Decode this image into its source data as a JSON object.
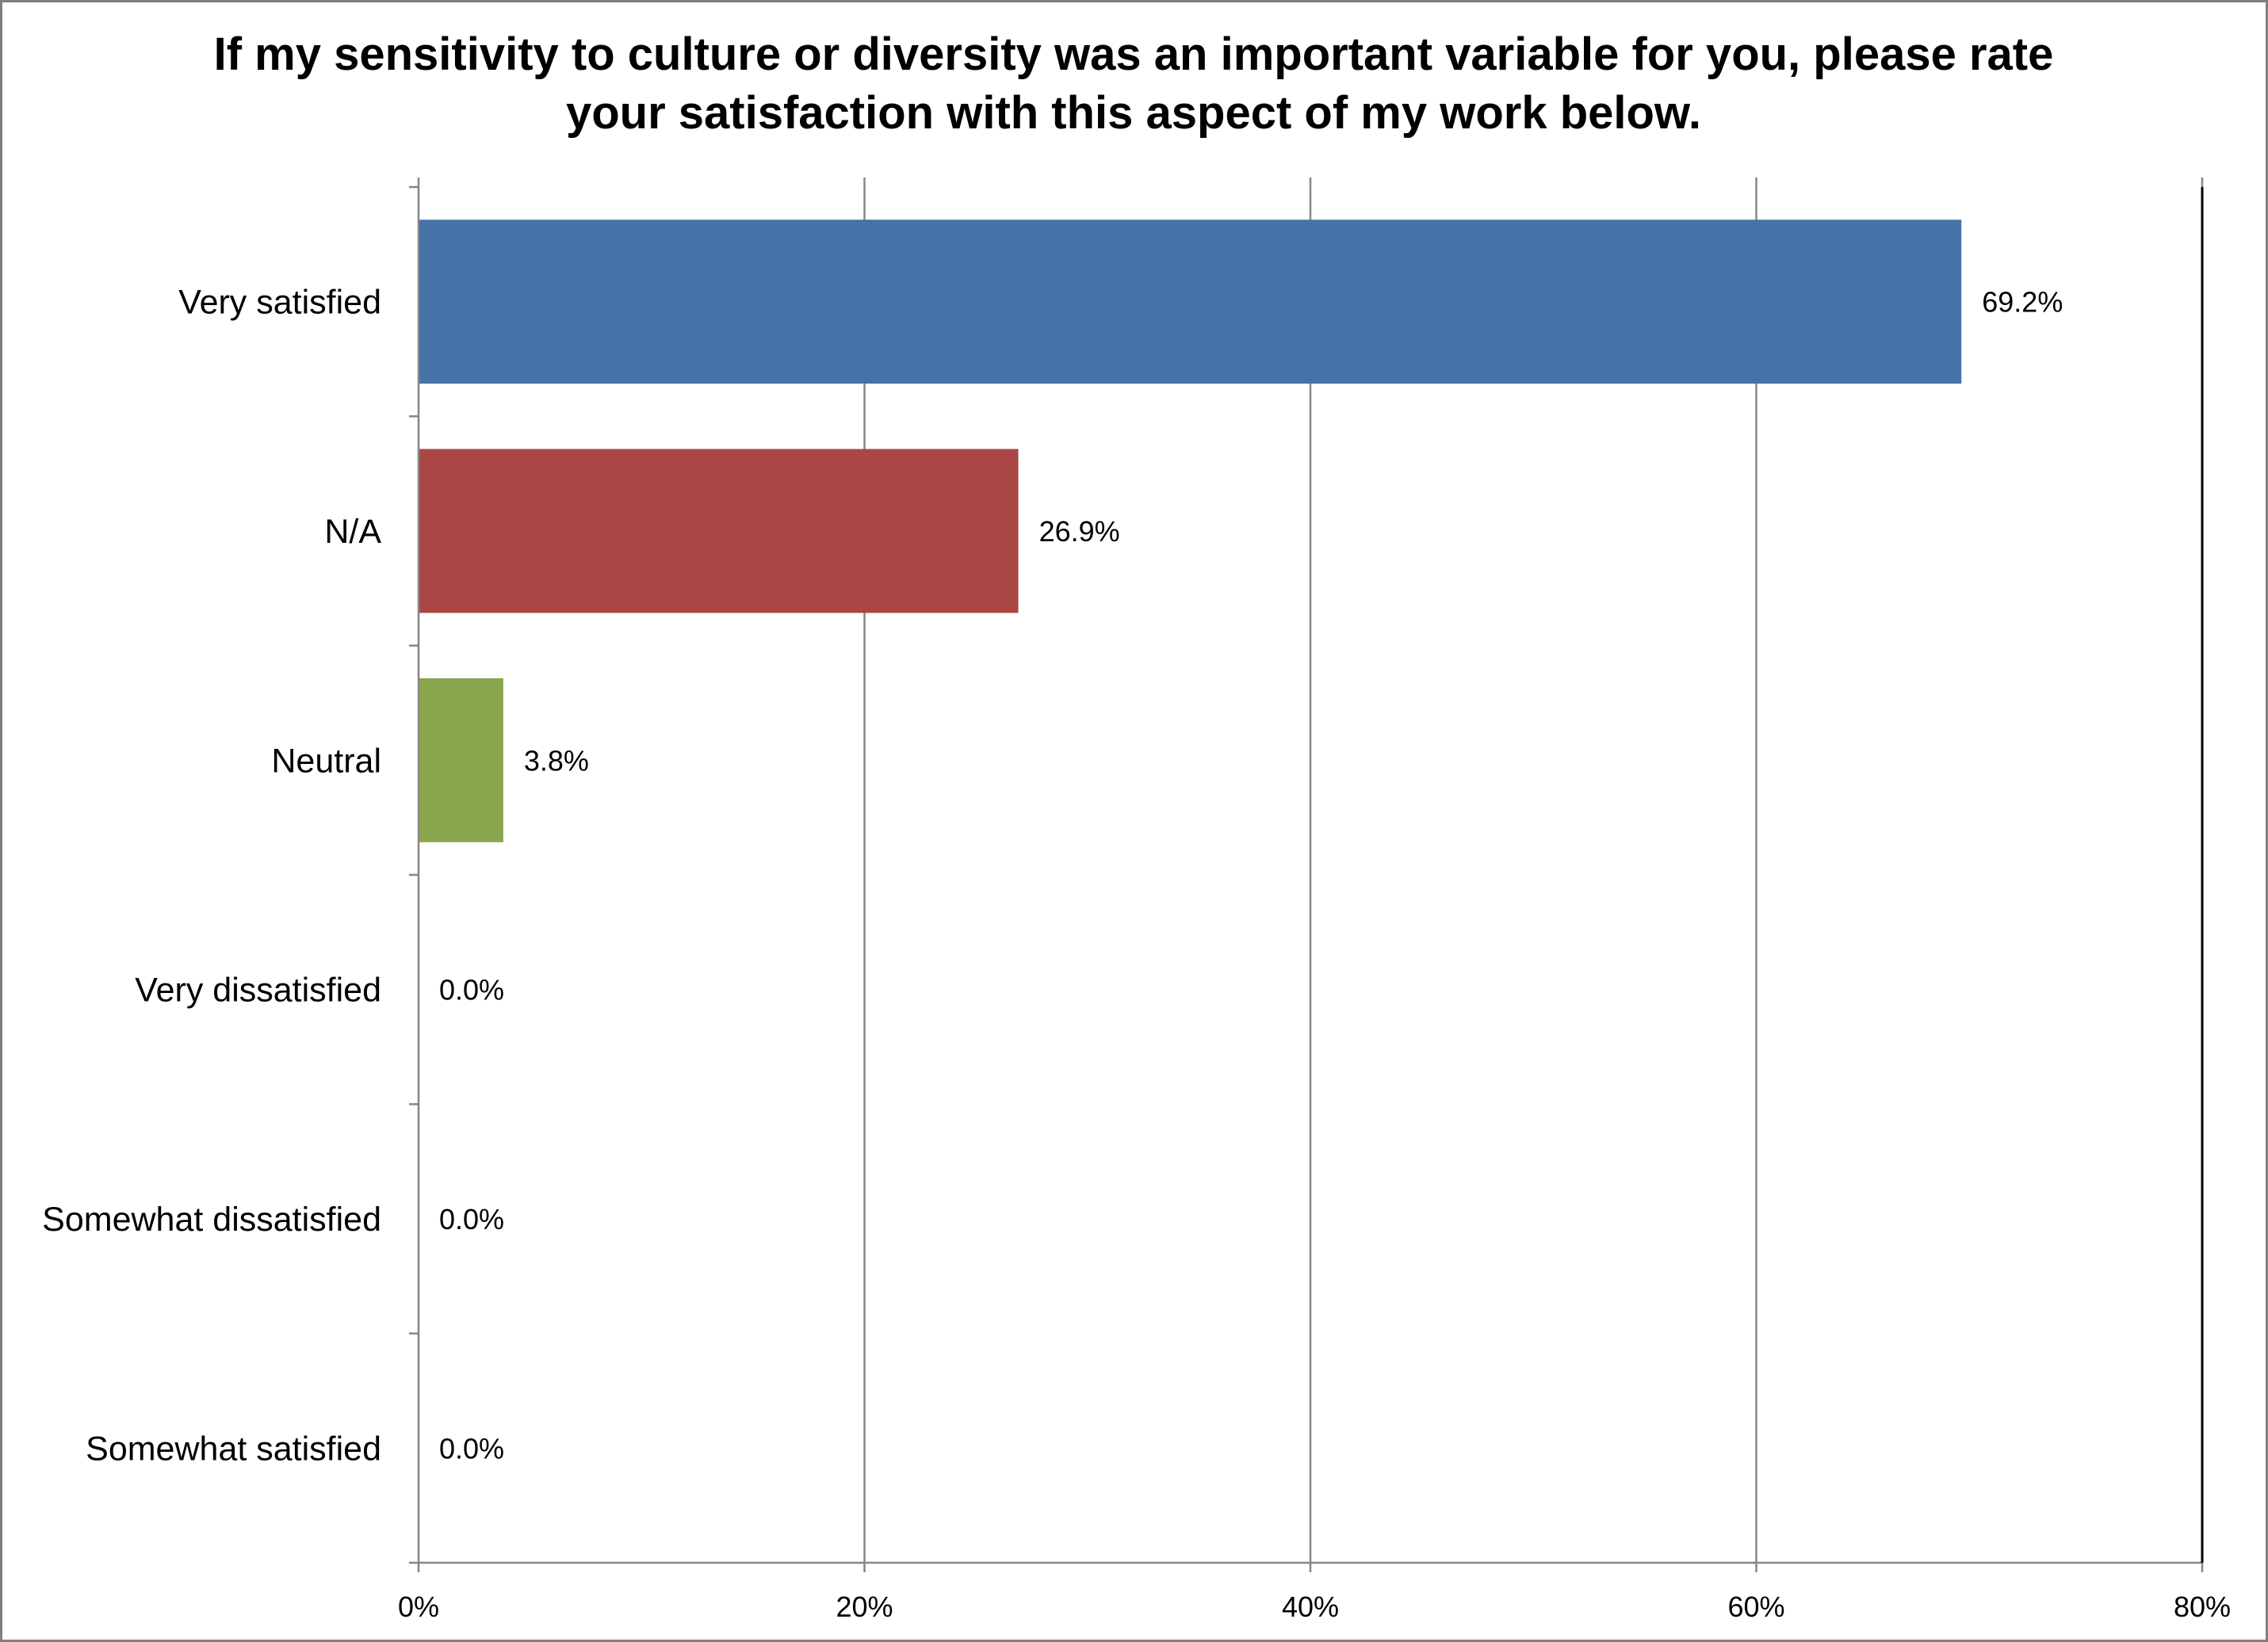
{
  "chart_data": {
    "type": "bar",
    "orientation": "horizontal",
    "title": "If my sensitivity to culture or diversity was an important variable for you, please rate your satisfaction with this aspect of my work below.",
    "categories": [
      "Very satisfied",
      "N/A",
      "Neutral",
      "Very dissatisfied",
      "Somewhat dissatisfied",
      "Somewhat satisfied"
    ],
    "values": [
      69.2,
      26.9,
      3.8,
      0.0,
      0.0,
      0.0
    ],
    "data_labels": [
      "69.2%",
      "26.9%",
      "3.8%",
      "0.0%",
      "0.0%",
      "0.0%"
    ],
    "colors": [
      "#4573a7",
      "#aa4644",
      "#89a54e",
      "#71588f",
      "#4198af",
      "#db843d"
    ],
    "xlim": [
      0,
      80
    ],
    "xticks": [
      0,
      20,
      40,
      60,
      80
    ],
    "xtick_labels": [
      "0%",
      "20%",
      "40%",
      "60%",
      "80%"
    ],
    "xlabel": "",
    "ylabel": "",
    "grid": "vertical major gridlines",
    "legend": "none"
  }
}
